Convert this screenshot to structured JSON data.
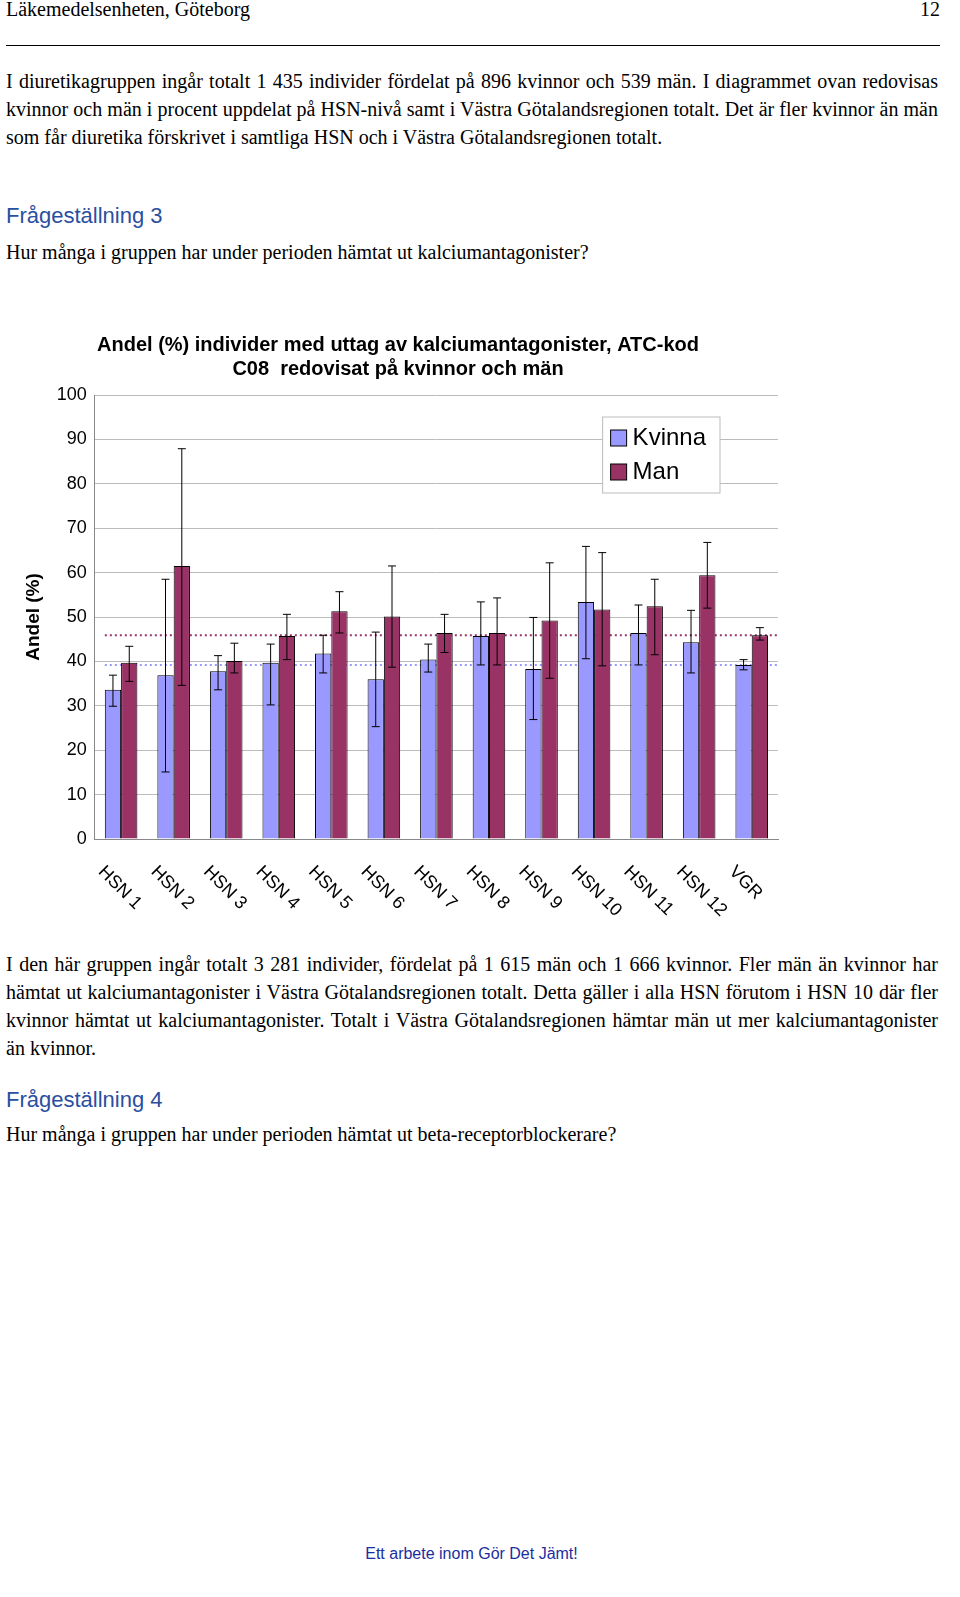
{
  "header": {
    "left": "Läkemedelsenheten, Göteborg",
    "page": "12"
  },
  "paragraphs": {
    "p1": "I diuretikagruppen ingår totalt 1 435 individer fördelat på 896 kvinnor och 539 män. I diagrammet ovan redovisas kvinnor och män i procent uppdelat på HSN-nivå samt i Västra Götalandsregionen totalt. Det är fler kvinnor än män som får diuretika förskrivet i samtliga HSN och i Västra Götalandsregionen totalt.",
    "h3": "Frågeställning 3",
    "q3": "Hur många i gruppen har under perioden hämtat ut kalciumantagonister?",
    "p2": "I den här gruppen ingår totalt 3 281 individer, fördelat på 1 615 män och 1 666 kvinnor. Fler män än kvinnor har hämtat ut kalciumantagonister i Västra Götalandsregionen totalt. Detta gäller i alla HSN förutom i HSN 10 där fler kvinnor hämtat ut kalciumantagonister. Totalt i Västra Götalandsregionen hämtar män ut mer kalciumantagonister än kvinnor.",
    "h4": "Frågeställning 4",
    "q4": "Hur många i gruppen har under perioden hämtat ut beta-receptorblockerare?"
  },
  "footer": "Ett arbete inom Gör Det Jämt!",
  "chart_data": {
    "type": "bar",
    "title": [
      "Andel (%) individer med uttag av kalciumantagonister, ATC-kod",
      "C08  redovisat på kvinnor och män"
    ],
    "y_label": "Andel (%)",
    "categories": [
      "HSN 1",
      "HSN 2",
      "HSN 3",
      "HSN 4",
      "HSN 5",
      "HSN 6",
      "HSN 7",
      "HSN 8",
      "HSN 9",
      "HSN 10",
      "HSN 11",
      "HSN 12",
      "VGR"
    ],
    "series": [
      {
        "name": "Kvinna",
        "color": "#9999ff",
        "values": [
          33.6,
          36.9,
          37.8,
          39.7,
          41.8,
          36.0,
          40.4,
          45.7,
          38.3,
          53.4,
          46.4,
          44.3,
          39.2
        ],
        "error_low": [
          29.9,
          15.1,
          33.6,
          30.2,
          37.4,
          25.3,
          37.6,
          39.2,
          26.9,
          40.6,
          39.2,
          37.4,
          38.1
        ],
        "error_high": [
          36.9,
          58.5,
          41.3,
          43.9,
          45.9,
          46.6,
          43.9,
          53.4,
          49.9,
          65.9,
          52.7,
          51.5,
          40.4
        ]
      },
      {
        "name": "Man",
        "color": "#993366",
        "values": [
          39.7,
          61.5,
          40.1,
          45.7,
          51.3,
          50.1,
          46.4,
          46.4,
          49.2,
          51.7,
          52.4,
          59.4,
          45.9
        ],
        "error_low": [
          35.5,
          34.6,
          37.4,
          40.4,
          46.4,
          38.7,
          42.0,
          39.2,
          36.2,
          39.0,
          41.5,
          52.0,
          44.8
        ],
        "error_high": [
          43.4,
          87.9,
          44.1,
          50.6,
          55.7,
          61.5,
          50.6,
          54.3,
          62.2,
          64.5,
          58.5,
          66.8,
          47.6
        ]
      }
    ],
    "ylim": [
      0,
      100
    ],
    "yticks": [
      0,
      10,
      20,
      30,
      40,
      50,
      60,
      70,
      80,
      90,
      100
    ],
    "grid": true,
    "legend": "upper right"
  }
}
